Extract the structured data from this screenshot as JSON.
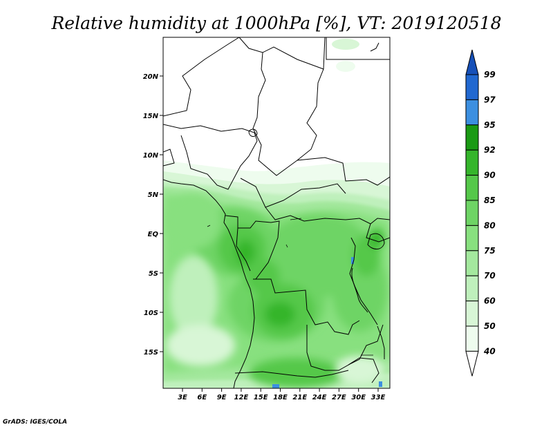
{
  "title": "Relative humidity at 1000hPa [%], VT: 2019120518",
  "credit": "GrADS: IGES/COLA",
  "map": {
    "lat_ticks": [
      "20N",
      "15N",
      "10N",
      "5N",
      "EQ",
      "5S",
      "10S",
      "15S"
    ],
    "lon_ticks": [
      "3E",
      "6E",
      "9E",
      "12E",
      "15E",
      "18E",
      "21E",
      "24E",
      "27E",
      "30E",
      "33E"
    ]
  },
  "colorbar": {
    "labels": [
      "99",
      "97",
      "95",
      "92",
      "90",
      "85",
      "80",
      "75",
      "70",
      "60",
      "50",
      "40"
    ],
    "colors": {
      "c40_50": "#eefcee",
      "c50_60": "#d8f6d6",
      "c60_70": "#bff0bc",
      "c70_75": "#a4e89e",
      "c75_80": "#88e07f",
      "c80_85": "#6ed465",
      "c85_90": "#55c84a",
      "c90_92": "#35b52b",
      "c92_95": "#1a9a14",
      "c95_97": "#3c8fe0",
      "c97_99": "#2168d0",
      "c99up": "#1650b8"
    }
  },
  "chart_data": {
    "type": "heatmap",
    "title": "Relative humidity at 1000hPa [%], VT: 2019120518",
    "variable": "Relative humidity",
    "units": "%",
    "level": "1000hPa",
    "valid_time": "2019120518",
    "colorbar_levels": [
      40,
      50,
      60,
      70,
      75,
      80,
      85,
      90,
      92,
      95,
      97,
      99
    ],
    "lat_ticks": [
      "20N",
      "15N",
      "10N",
      "5N",
      "EQ",
      "5S",
      "10S",
      "15S"
    ],
    "lon_ticks": [
      "3E",
      "6E",
      "9E",
      "12E",
      "15E",
      "18E",
      "21E",
      "24E",
      "27E",
      "30E",
      "33E"
    ]
  }
}
